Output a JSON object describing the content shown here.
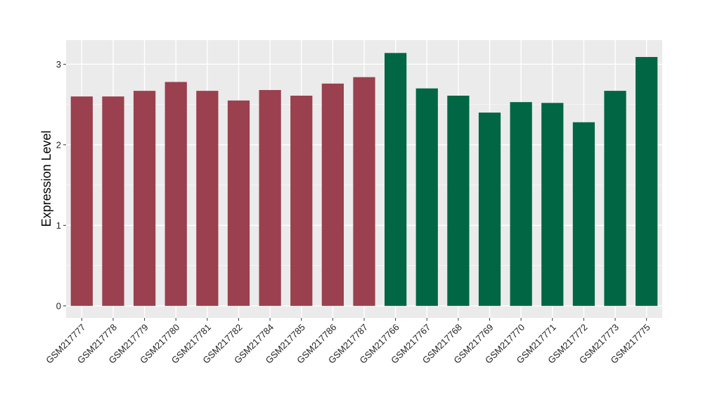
{
  "chart_data": {
    "type": "bar",
    "title": "",
    "xlabel": "",
    "ylabel": "Expression Level",
    "ylim": [
      -0.15,
      3.3
    ],
    "yticks": [
      0,
      1,
      2,
      3
    ],
    "grid": true,
    "panel_background": "#EBEBEB",
    "categories": [
      "GSM217777",
      "GSM217778",
      "GSM217779",
      "GSM217780",
      "GSM217781",
      "GSM217782",
      "GSM217784",
      "GSM217785",
      "GSM217786",
      "GSM217787",
      "GSM217766",
      "GSM217767",
      "GSM217768",
      "GSM217769",
      "GSM217770",
      "GSM217771",
      "GSM217772",
      "GSM217773",
      "GSM217775"
    ],
    "values": [
      2.6,
      2.6,
      2.67,
      2.78,
      2.67,
      2.55,
      2.68,
      2.61,
      2.76,
      2.84,
      3.14,
      2.7,
      2.61,
      2.4,
      2.53,
      2.52,
      2.28,
      2.67,
      3.09
    ],
    "colors": [
      "#9A404E",
      "#9A404E",
      "#9A404E",
      "#9A404E",
      "#9A404E",
      "#9A404E",
      "#9A404E",
      "#9A404E",
      "#9A404E",
      "#9A404E",
      "#006644",
      "#006644",
      "#006644",
      "#006644",
      "#006644",
      "#006644",
      "#006644",
      "#006644",
      "#006644"
    ]
  }
}
